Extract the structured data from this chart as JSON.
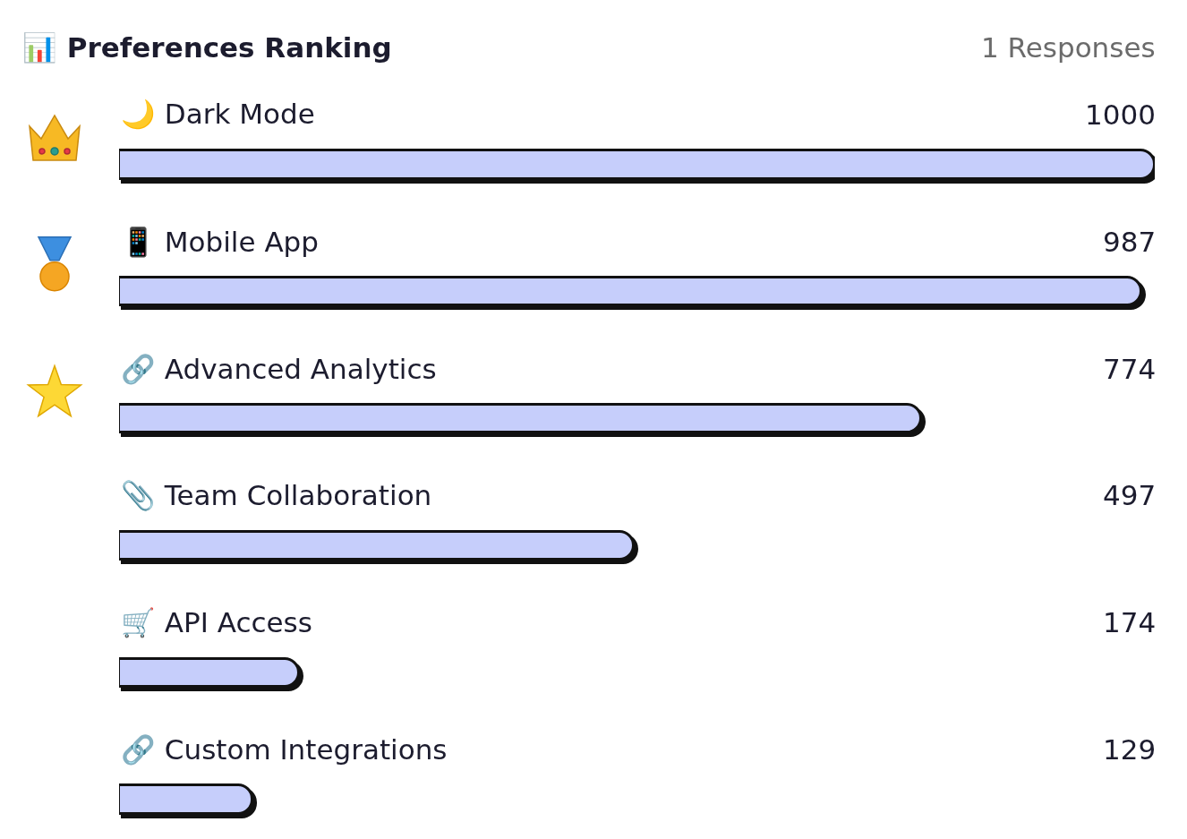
{
  "chart_data": {
    "type": "bar",
    "orientation": "horizontal",
    "title": "📊 Preferences Ranking",
    "subtitle": "1 Responses",
    "categories": [
      "🌙 Dark Mode",
      "📱 Mobile App",
      "🔗 Advanced Analytics",
      "📎 Team Collaboration",
      "🛒 API Access",
      "🔗 Custom Integrations"
    ],
    "values": [
      1000,
      987,
      774,
      497,
      174,
      129
    ],
    "color": "#c6cefb",
    "data_labels": true,
    "tick_labels": "y"
  }
}
